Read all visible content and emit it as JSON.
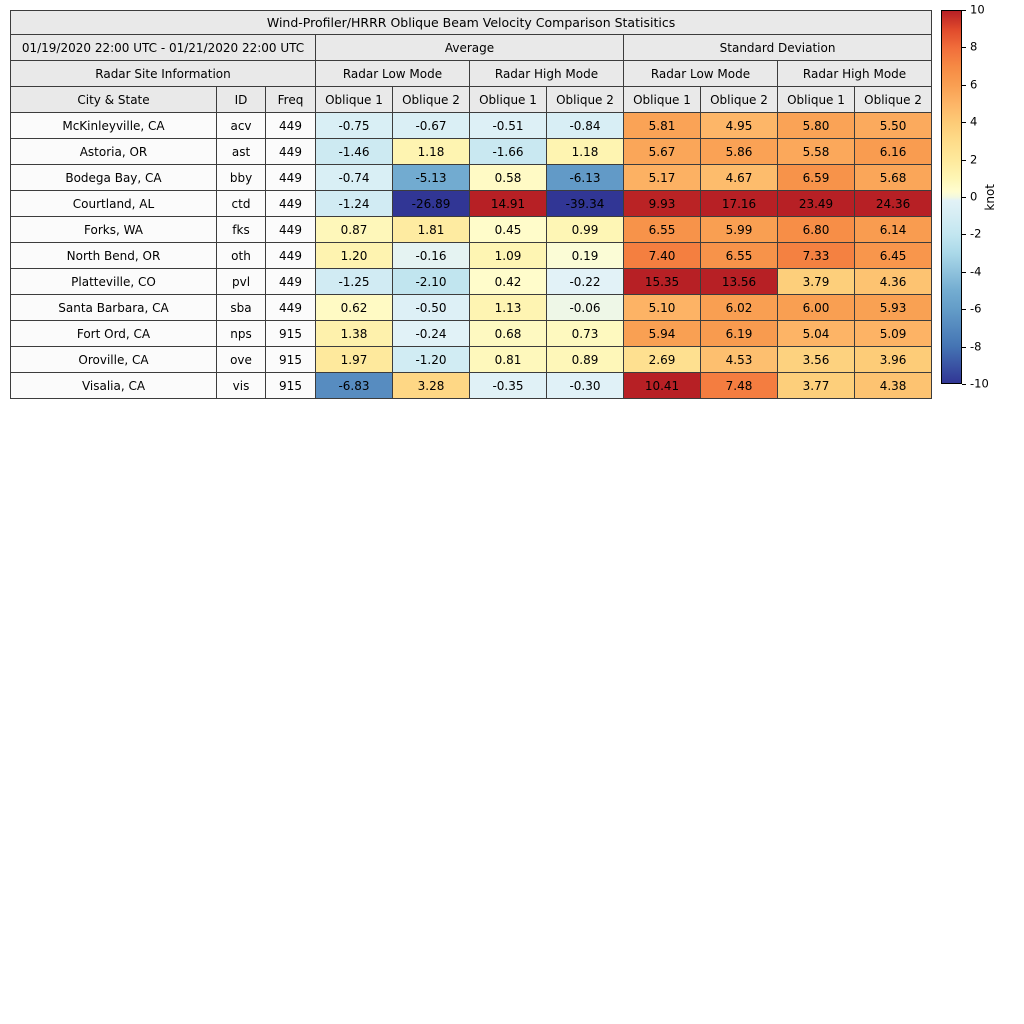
{
  "chart_data": {
    "type": "heatmap",
    "title": "Wind-Profiler/HRRR Oblique Beam Velocity Comparison Statisitics",
    "period": "01/19/2020 22:00 UTC - 01/21/2020 22:00 UTC",
    "site_info_header": "Radar Site Information",
    "group_headers": [
      "Average",
      "Standard Deviation"
    ],
    "mode_headers": [
      "Radar Low Mode",
      "Radar High Mode",
      "Radar Low Mode",
      "Radar High Mode"
    ],
    "col_city": "City & State",
    "col_id": "ID",
    "col_freq": "Freq",
    "oblique_headers": [
      "Oblique 1",
      "Oblique 2",
      "Oblique 1",
      "Oblique 2",
      "Oblique 1",
      "Oblique 2",
      "Oblique 1",
      "Oblique 2"
    ],
    "rows": [
      {
        "city": "McKinleyville, CA",
        "id": "acv",
        "freq": "449",
        "values": [
          -0.75,
          -0.67,
          -0.51,
          -0.84,
          5.81,
          4.95,
          5.8,
          5.5
        ]
      },
      {
        "city": "Astoria, OR",
        "id": "ast",
        "freq": "449",
        "values": [
          -1.46,
          1.18,
          -1.66,
          1.18,
          5.67,
          5.86,
          5.58,
          6.16
        ]
      },
      {
        "city": "Bodega Bay, CA",
        "id": "bby",
        "freq": "449",
        "values": [
          -0.74,
          -5.13,
          0.58,
          -6.13,
          5.17,
          4.67,
          6.59,
          5.68
        ]
      },
      {
        "city": "Courtland, AL",
        "id": "ctd",
        "freq": "449",
        "values": [
          -1.24,
          -26.89,
          14.91,
          -39.34,
          9.93,
          17.16,
          23.49,
          24.36
        ]
      },
      {
        "city": "Forks, WA",
        "id": "fks",
        "freq": "449",
        "values": [
          0.87,
          1.81,
          0.45,
          0.99,
          6.55,
          5.99,
          6.8,
          6.14
        ]
      },
      {
        "city": "North Bend, OR",
        "id": "oth",
        "freq": "449",
        "values": [
          1.2,
          -0.16,
          1.09,
          0.19,
          7.4,
          6.55,
          7.33,
          6.45
        ]
      },
      {
        "city": "Platteville, CO",
        "id": "pvl",
        "freq": "449",
        "values": [
          -1.25,
          -2.1,
          0.42,
          -0.22,
          15.35,
          13.56,
          3.79,
          4.36
        ]
      },
      {
        "city": "Santa Barbara, CA",
        "id": "sba",
        "freq": "449",
        "values": [
          0.62,
          -0.5,
          1.13,
          -0.06,
          5.1,
          6.02,
          6.0,
          5.93
        ]
      },
      {
        "city": "Fort Ord, CA",
        "id": "nps",
        "freq": "915",
        "values": [
          1.38,
          -0.24,
          0.68,
          0.73,
          5.94,
          6.19,
          5.04,
          5.09
        ]
      },
      {
        "city": "Oroville, CA",
        "id": "ove",
        "freq": "915",
        "values": [
          1.97,
          -1.2,
          0.81,
          0.89,
          2.69,
          4.53,
          3.56,
          3.96
        ]
      },
      {
        "city": "Visalia, CA",
        "id": "vis",
        "freq": "915",
        "values": [
          -6.83,
          3.28,
          -0.35,
          -0.3,
          10.41,
          7.48,
          3.77,
          4.38
        ]
      }
    ],
    "colorbar": {
      "label": "knot",
      "ticks": [
        10,
        8,
        6,
        4,
        2,
        0,
        -2,
        -4,
        -6,
        -8,
        -10
      ],
      "vmin": -10,
      "vmax": 10
    },
    "colormap_stops": [
      [
        -10,
        "#313695"
      ],
      [
        -8,
        "#4575b4"
      ],
      [
        -6,
        "#649dc8"
      ],
      [
        -5,
        "#74add1"
      ],
      [
        -4,
        "#90c3dd"
      ],
      [
        -3,
        "#abd9e9"
      ],
      [
        -2,
        "#c3e6f0"
      ],
      [
        -1,
        "#d5edf4"
      ],
      [
        -0.2,
        "#e2f2f7"
      ],
      [
        0,
        "#f3f9e0"
      ],
      [
        0.3,
        "#fffdd0"
      ],
      [
        1,
        "#fef6b5"
      ],
      [
        2,
        "#fee99c"
      ],
      [
        3,
        "#fedc8a"
      ],
      [
        4,
        "#fdcb77"
      ],
      [
        5,
        "#fdb567"
      ],
      [
        6,
        "#f99f52"
      ],
      [
        7,
        "#f68a44"
      ],
      [
        8,
        "#f16e3b"
      ],
      [
        9,
        "#e04a2c"
      ],
      [
        10,
        "#b72025"
      ]
    ]
  }
}
